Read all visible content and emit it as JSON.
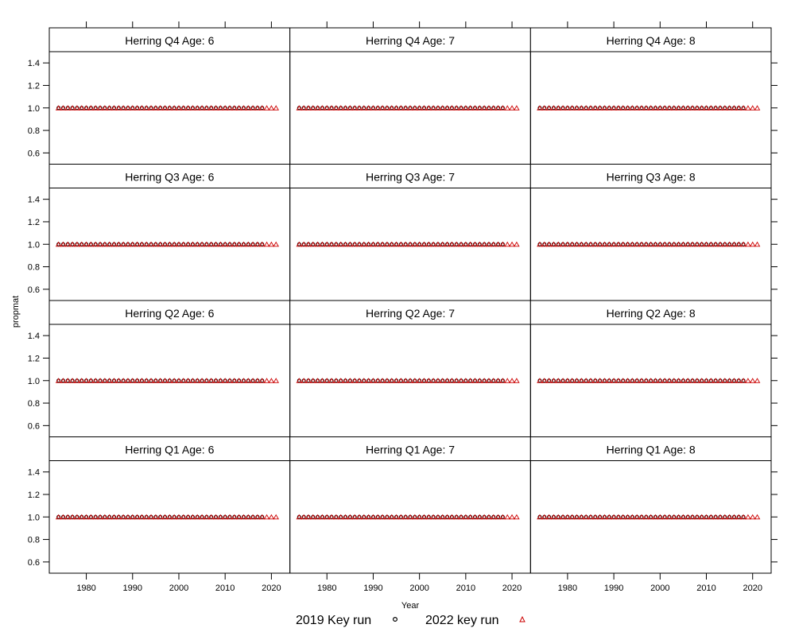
{
  "chart_data": {
    "type": "scatter",
    "layout": {
      "columns": 3,
      "rows": 4
    },
    "xlabel": "Year",
    "ylabel": "propmat",
    "xlim": [
      1972,
      2024
    ],
    "ylim": [
      0.5,
      1.5
    ],
    "x_ticks": [
      1980,
      1990,
      2000,
      2010,
      2020
    ],
    "x_tick_labels": [
      "1980",
      "1990",
      "2000",
      "2010",
      "2020"
    ],
    "y_ticks": [
      0.6,
      0.8,
      1.0,
      1.2,
      1.4
    ],
    "y_tick_labels": [
      "0.6",
      "0.8",
      "1.0",
      "1.2",
      "1.4"
    ],
    "legend_position": "bottom",
    "series_meta": [
      {
        "name": "2019 Key run",
        "marker": "circle",
        "color": "#000000",
        "years": [
          1974,
          2018
        ],
        "value": 1.0
      },
      {
        "name": "2022 key run",
        "marker": "triangle",
        "color": "#cc0000",
        "years": [
          1974,
          2021
        ],
        "value": 1.0
      }
    ],
    "panels": [
      {
        "title": "Herring Q4 Age: 6",
        "row": 0,
        "col": 0
      },
      {
        "title": "Herring Q4 Age: 7",
        "row": 0,
        "col": 1
      },
      {
        "title": "Herring Q4 Age: 8",
        "row": 0,
        "col": 2
      },
      {
        "title": "Herring Q3 Age: 6",
        "row": 1,
        "col": 0
      },
      {
        "title": "Herring Q3 Age: 7",
        "row": 1,
        "col": 1
      },
      {
        "title": "Herring Q3 Age: 8",
        "row": 1,
        "col": 2
      },
      {
        "title": "Herring Q2 Age: 6",
        "row": 2,
        "col": 0
      },
      {
        "title": "Herring Q2 Age: 7",
        "row": 2,
        "col": 1
      },
      {
        "title": "Herring Q2 Age: 8",
        "row": 2,
        "col": 2
      },
      {
        "title": "Herring Q1 Age: 6",
        "row": 3,
        "col": 0
      },
      {
        "title": "Herring Q1 Age: 7",
        "row": 3,
        "col": 1
      },
      {
        "title": "Herring Q1 Age: 8",
        "row": 3,
        "col": 2
      }
    ]
  }
}
